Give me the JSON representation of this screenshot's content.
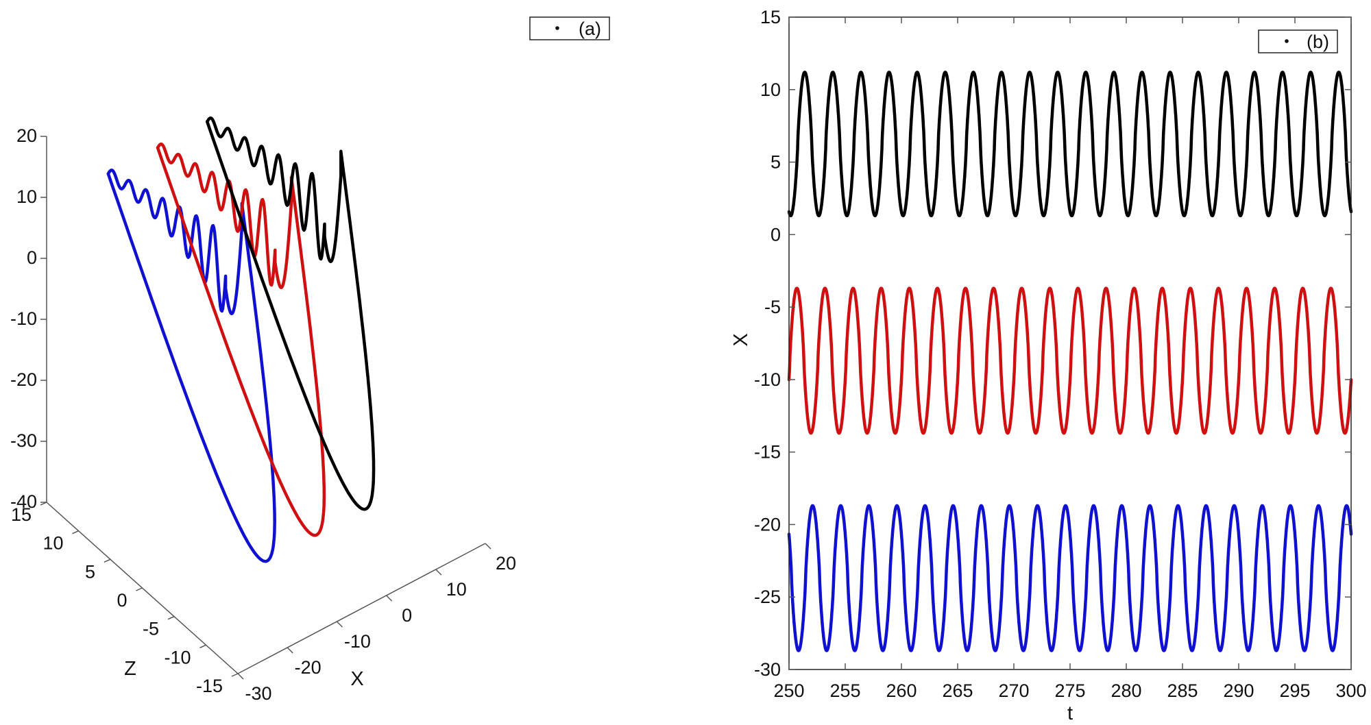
{
  "chart_data": [
    {
      "panel": "a",
      "type": "line",
      "projection": "3d",
      "legend": {
        "label": "(a)",
        "marker": "dot",
        "placement": "top-right"
      },
      "xlabel": "X",
      "ylabel": "Z",
      "zlabel": "",
      "xlim": [
        -30,
        20
      ],
      "ylim": [
        -15,
        15
      ],
      "zlim": [
        -40,
        20
      ],
      "xticks": [
        "-30",
        "-20",
        "-10",
        "0",
        "10",
        "20"
      ],
      "yticks": [
        "-15",
        "-10",
        "-5",
        "0",
        "5",
        "10",
        "15"
      ],
      "zticks": [
        "-40",
        "-30",
        "-20",
        "-10",
        "0",
        "10",
        "20"
      ],
      "grid": false,
      "series": [
        {
          "color": "#1010d0",
          "x_offset": -20
        },
        {
          "color": "#d01010",
          "x_offset": -10
        },
        {
          "color": "#000000",
          "x_offset": 0
        }
      ]
    },
    {
      "panel": "b",
      "type": "line",
      "legend": {
        "label": "(b)",
        "marker": "dot",
        "placement": "top-right"
      },
      "xlabel": "t",
      "ylabel": "X",
      "xlim": [
        250,
        300
      ],
      "ylim": [
        -30,
        15
      ],
      "xticks": [
        "250",
        "255",
        "260",
        "265",
        "270",
        "275",
        "280",
        "285",
        "290",
        "295",
        "300"
      ],
      "yticks": [
        "-30",
        "-25",
        "-20",
        "-15",
        "-10",
        "-5",
        "0",
        "5",
        "10",
        "15"
      ],
      "grid": false,
      "series": [
        {
          "color": "#000000",
          "min": 1.3,
          "max": 11.2,
          "period": 2.5,
          "phase_t": 251.4
        },
        {
          "color": "#d01010",
          "min": -13.7,
          "max": -3.7,
          "period": 2.5,
          "phase_t": 250.7
        },
        {
          "color": "#1010d0",
          "min": -28.7,
          "max": -18.7,
          "period": 2.5,
          "phase_t": 249.6
        }
      ]
    }
  ]
}
